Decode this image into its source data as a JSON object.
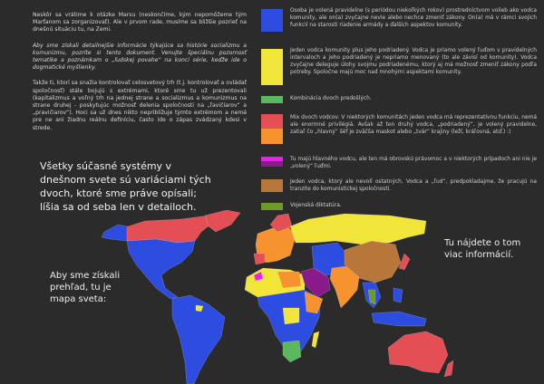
{
  "intro": {
    "p1": "Neskôr sa vrátime k otázke Marsu (neskončíme, kým nepomôžeme tým Marťanom sa zorganizovať). Ale v prvom rade, musíme sa bližšie pozrieť na dnešnú situáciu tu, na Zemi.",
    "p2": "Aby sme získali detailnejšie informácie týkajúce sa histórie socializmu a komunizmu, pozrite si tento dokument. Venujte špeciálnu pozornosť tematike a poznámkam o „ľudskej povahe“ na konci série, keďže ide o dogmatické myšlienky.",
    "p3": "Takže ti, ktorí sa snažia kontrolovať celosvetový trh (t.j. kontrolovať a ovládať spoločnosť) stále bojujú s extrémami, ktoré sme tu už prezentovali (kapitalizmus a voľný trh na jednej strane a socializmus a komunizmus na strane druhej - poskytujúc možnosť delenia spoločnosti na „ľavičiarov“ a „pravičiarov“). Hoci sa už dnes nikto nepribližuje týmto extrémom a nemá pre ne ani žiadnu reálnu definíciu, často ide o zápas zvádzaný kdesi v strede."
  },
  "legend": [
    {
      "colors": [
        "#2d4de0"
      ],
      "text": "Osoba je volená pravidelne (s periódou niekoľkých rokov) prostredníctvom volieb ako vodca komunity, ale on(a) zvyčajne nevie alebo nechce zmeniť zákony. On(a) má v rámci svojich funkcií na starosti riadenie armády a ďalších aspektov komunity."
    },
    {
      "colors": [
        "#f2e53a"
      ],
      "text": "Jeden vodca komunity plus jeho podriadený. Vodca je priamo volený ľuďom v pravidelných intervaloch a jeho podriadený je nepriamo menovaný (to ale závisí od komunity). Vodca zvyčajne deleguje úlohy svojmu podriadenému, ktorý aj má možnosť zmeniť zákony podľa potreby. Spoločne majú moc nad mnohými aspektami komunity."
    },
    {
      "colors": [
        "#5cb85c"
      ],
      "text": "Kombinácia dvoch predošlých."
    },
    {
      "colors": [
        "#e34f55",
        "#f7932e"
      ],
      "text": "Mix dvoch vodcov. V niektorých komunitách jeden vodca má reprezentatívnu funkciu, nemá ale enormné privilégiá. Avšak až ten druhý vodca, „podriadený“, je volený pravidelne, zatiaľ čo „hlavný“ šéf je zväčša maskot alebo „tvár“ krajiny (leží, kráľovná, atď.) :)"
    },
    {
      "colors": [
        "#ef1ef0",
        "#8a1a8c"
      ],
      "text": "Tu majú hlavného vodcu, ale ten má obrovskú právomoc a v niektorých prípadoch ani nie je „volený“ ľuďmi."
    },
    {
      "colors": [
        "#b8773a"
      ],
      "text": "Jeden vodca, ktorý ale nevolí ostatných. Vodca a „ľud“, predpokladajme, že pracujú na tranzite do komunistickej spoločnosti."
    },
    {
      "colors": [
        "#6e9a2a"
      ],
      "text": "Vojenská diktatúra."
    }
  ],
  "big_text": "Všetky súčasné systémy v dnešnom svete sú variáciami tých dvoch, ktoré sme práve opísali; líšia sa od seba len v detailoch.",
  "map_caption": "Aby sme získali prehľad, tu je mapa sveta:",
  "more_info": "Tu nájdete o tom viac informácií.",
  "colors": {
    "background": "#2b2b2b",
    "blue": "#2d4de0",
    "yellow": "#f2e53a",
    "green": "#5cb85c",
    "red": "#e34f55",
    "orange": "#f7932e",
    "magenta": "#ef1ef0",
    "purple": "#8a1a8c",
    "brown": "#b8773a",
    "olive": "#6e9a2a"
  }
}
